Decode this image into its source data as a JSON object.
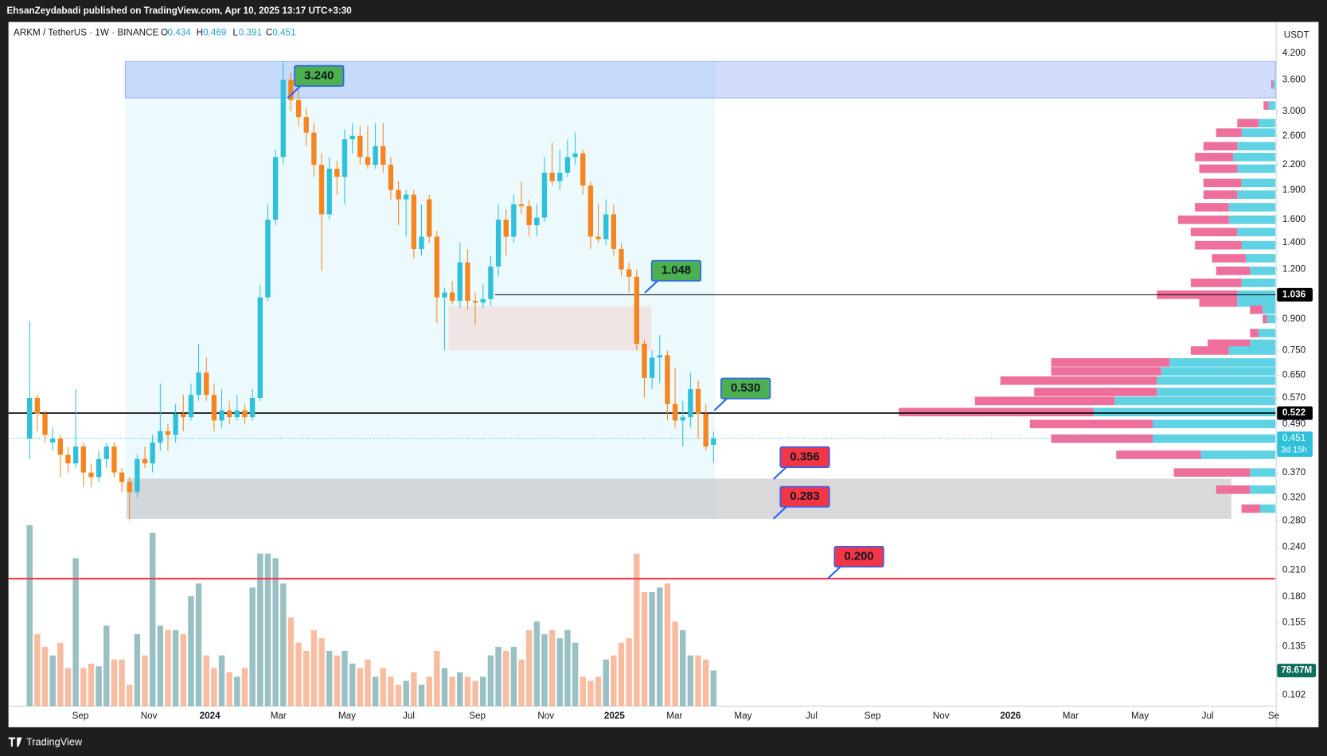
{
  "header": {
    "published": "EhsanZeydabadi published on TradingView.com, Apr 10, 2025 13:17 UTC+3:30",
    "brand": "TradingView"
  },
  "chart_data": {
    "type": "candlestick",
    "title": "ARKM / TetherUS · 1W · BINANCE",
    "ohlc_labels": [
      "O",
      "H",
      "L",
      "C"
    ],
    "axis_title": "USDT",
    "log_scale": true,
    "grid": false,
    "up_color": "#2fc1db",
    "down_color": "#f5861f",
    "ylim": [
      0.0956,
      5.03
    ],
    "yticks": [
      {
        "value": 4.2,
        "label": "4.200"
      },
      {
        "value": 3.6,
        "label": "3.600"
      },
      {
        "value": 3.0,
        "label": "3.000"
      },
      {
        "value": 2.6,
        "label": "2.600"
      },
      {
        "value": 2.2,
        "label": "2.200"
      },
      {
        "value": 1.9,
        "label": "1.900"
      },
      {
        "value": 1.6,
        "label": "1.600"
      },
      {
        "value": 1.4,
        "label": "1.400"
      },
      {
        "value": 1.2,
        "label": "1.200"
      },
      {
        "value": 0.9,
        "label": "0.900"
      },
      {
        "value": 0.75,
        "label": "0.750"
      },
      {
        "value": 0.65,
        "label": "0.650"
      },
      {
        "value": 0.57,
        "label": "0.570"
      },
      {
        "value": 0.49,
        "label": "0.490"
      },
      {
        "value": 0.37,
        "label": "0.370"
      },
      {
        "value": 0.32,
        "label": "0.320"
      },
      {
        "value": 0.28,
        "label": "0.280"
      },
      {
        "value": 0.24,
        "label": "0.240"
      },
      {
        "value": 0.21,
        "label": "0.210"
      },
      {
        "value": 0.18,
        "label": "0.180"
      },
      {
        "value": 0.155,
        "label": "0.155"
      },
      {
        "value": 0.135,
        "label": "0.135"
      },
      {
        "value": 0.102,
        "label": "0.102"
      }
    ],
    "x_labels": [
      "Sep",
      "Nov",
      "2024",
      "Mar",
      "May",
      "Jul",
      "Sep",
      "Nov",
      "2025",
      "Mar",
      "May",
      "Jul",
      "Sep",
      "Nov",
      "2026",
      "Mar",
      "May",
      "Jul",
      "Se"
    ],
    "candles": [
      [
        0.45,
        0.89,
        0.4,
        0.57
      ],
      [
        0.57,
        0.58,
        0.47,
        0.52
      ],
      [
        0.52,
        0.53,
        0.44,
        0.46
      ],
      [
        0.44,
        0.48,
        0.42,
        0.45
      ],
      [
        0.45,
        0.46,
        0.36,
        0.41
      ],
      [
        0.41,
        0.43,
        0.37,
        0.39
      ],
      [
        0.39,
        0.6,
        0.38,
        0.43
      ],
      [
        0.43,
        0.44,
        0.34,
        0.37
      ],
      [
        0.37,
        0.39,
        0.34,
        0.36
      ],
      [
        0.36,
        0.42,
        0.35,
        0.4
      ],
      [
        0.4,
        0.44,
        0.38,
        0.43
      ],
      [
        0.43,
        0.44,
        0.36,
        0.37
      ],
      [
        0.37,
        0.38,
        0.33,
        0.35
      ],
      [
        0.35,
        0.36,
        0.28,
        0.33
      ],
      [
        0.33,
        0.41,
        0.32,
        0.4
      ],
      [
        0.4,
        0.43,
        0.38,
        0.39
      ],
      [
        0.39,
        0.46,
        0.37,
        0.44
      ],
      [
        0.44,
        0.62,
        0.42,
        0.47
      ],
      [
        0.47,
        0.49,
        0.42,
        0.46
      ],
      [
        0.46,
        0.55,
        0.44,
        0.52
      ],
      [
        0.52,
        0.58,
        0.47,
        0.51
      ],
      [
        0.51,
        0.62,
        0.5,
        0.58
      ],
      [
        0.58,
        0.78,
        0.56,
        0.66
      ],
      [
        0.66,
        0.72,
        0.56,
        0.58
      ],
      [
        0.58,
        0.62,
        0.47,
        0.5
      ],
      [
        0.5,
        0.6,
        0.48,
        0.53
      ],
      [
        0.53,
        0.56,
        0.49,
        0.51
      ],
      [
        0.51,
        0.58,
        0.5,
        0.53
      ],
      [
        0.53,
        0.55,
        0.49,
        0.51
      ],
      [
        0.51,
        0.6,
        0.5,
        0.57
      ],
      [
        0.57,
        1.1,
        0.56,
        1.02
      ],
      [
        1.02,
        1.75,
        1.0,
        1.6
      ],
      [
        1.6,
        2.4,
        1.55,
        2.3
      ],
      [
        2.3,
        4.0,
        2.2,
        3.6
      ],
      [
        3.6,
        3.75,
        3.0,
        3.2
      ],
      [
        3.2,
        3.4,
        2.75,
        2.9
      ],
      [
        2.9,
        3.05,
        2.45,
        2.65
      ],
      [
        2.65,
        2.8,
        2.05,
        2.2
      ],
      [
        2.2,
        2.35,
        1.19,
        1.65
      ],
      [
        1.65,
        2.3,
        1.6,
        2.15
      ],
      [
        2.15,
        2.25,
        1.85,
        2.05
      ],
      [
        2.05,
        2.7,
        1.75,
        2.55
      ],
      [
        2.55,
        2.8,
        2.35,
        2.6
      ],
      [
        2.6,
        2.75,
        2.2,
        2.3
      ],
      [
        2.3,
        2.75,
        2.15,
        2.2
      ],
      [
        2.2,
        2.8,
        2.15,
        2.45
      ],
      [
        2.45,
        2.8,
        2.1,
        2.2
      ],
      [
        2.2,
        2.3,
        1.8,
        1.9
      ],
      [
        1.9,
        2.0,
        1.55,
        1.8
      ],
      [
        1.8,
        1.9,
        1.45,
        1.85
      ],
      [
        1.85,
        1.9,
        1.28,
        1.35
      ],
      [
        1.35,
        1.75,
        1.3,
        1.45
      ],
      [
        1.8,
        1.85,
        1.4,
        1.45
      ],
      [
        1.45,
        1.5,
        0.88,
        1.02
      ],
      [
        1.02,
        1.08,
        0.75,
        1.05
      ],
      [
        1.05,
        1.12,
        0.98,
        1.0
      ],
      [
        1.0,
        1.4,
        0.96,
        1.25
      ],
      [
        1.25,
        1.35,
        0.95,
        1.0
      ],
      [
        1.0,
        1.05,
        0.87,
        0.99
      ],
      [
        0.99,
        1.1,
        0.96,
        1.01
      ],
      [
        1.01,
        1.3,
        0.97,
        1.22
      ],
      [
        1.22,
        1.75,
        1.15,
        1.6
      ],
      [
        1.6,
        1.7,
        1.3,
        1.45
      ],
      [
        1.45,
        1.85,
        1.4,
        1.75
      ],
      [
        1.75,
        2.0,
        1.65,
        1.73
      ],
      [
        1.73,
        1.8,
        1.45,
        1.55
      ],
      [
        1.55,
        1.75,
        1.45,
        1.62
      ],
      [
        1.62,
        2.3,
        1.58,
        2.1
      ],
      [
        2.1,
        2.5,
        1.95,
        2.0
      ],
      [
        2.0,
        2.4,
        1.9,
        2.1
      ],
      [
        2.1,
        2.55,
        2.05,
        2.3
      ],
      [
        2.3,
        2.65,
        2.2,
        2.35
      ],
      [
        2.35,
        2.4,
        1.85,
        1.95
      ],
      [
        1.95,
        2.0,
        1.35,
        1.45
      ],
      [
        1.45,
        1.75,
        1.4,
        1.43
      ],
      [
        1.43,
        1.8,
        1.38,
        1.65
      ],
      [
        1.65,
        1.75,
        1.3,
        1.35
      ],
      [
        1.35,
        1.4,
        1.15,
        1.2
      ],
      [
        1.2,
        1.25,
        1.05,
        1.15
      ],
      [
        1.15,
        1.2,
        0.75,
        0.78
      ],
      [
        0.78,
        0.8,
        0.57,
        0.64
      ],
      [
        0.64,
        0.75,
        0.6,
        0.72
      ],
      [
        0.72,
        0.82,
        0.62,
        0.73
      ],
      [
        0.73,
        0.75,
        0.5,
        0.55
      ],
      [
        0.55,
        0.68,
        0.48,
        0.5
      ],
      [
        0.5,
        0.56,
        0.43,
        0.51
      ],
      [
        0.51,
        0.66,
        0.48,
        0.6
      ],
      [
        0.6,
        0.63,
        0.45,
        0.52
      ],
      [
        0.52,
        0.55,
        0.42,
        0.43
      ],
      [
        0.434,
        0.469,
        0.391,
        0.451
      ]
    ],
    "volume": [
      400,
      159,
      131,
      112,
      140,
      84,
      327,
      84,
      94,
      88,
      178,
      103,
      103,
      47,
      159,
      112,
      383,
      178,
      168,
      168,
      159,
      243,
      271,
      112,
      84,
      112,
      75,
      65,
      84,
      262,
      337,
      337,
      327,
      271,
      196,
      140,
      122,
      168,
      150,
      122,
      112,
      122,
      94,
      84,
      103,
      65,
      84,
      65,
      47,
      56,
      75,
      47,
      65,
      122,
      84,
      65,
      75,
      65,
      56,
      65,
      112,
      131,
      122,
      131,
      103,
      168,
      187,
      159,
      168,
      150,
      168,
      140,
      65,
      56,
      65,
      103,
      112,
      140,
      150,
      337,
      252,
      252,
      262,
      271,
      187,
      168,
      112,
      112,
      103,
      78.67
    ],
    "volume_value_labels": {
      "89": "78.67M"
    },
    "profile": [
      {
        "price": 3.5,
        "up": 3,
        "down": 2
      },
      {
        "price": 3.1,
        "up": 8,
        "down": 6
      },
      {
        "price": 2.8,
        "up": 20,
        "down": 25
      },
      {
        "price": 2.65,
        "up": 40,
        "down": 30
      },
      {
        "price": 2.45,
        "up": 45,
        "down": 40
      },
      {
        "price": 2.3,
        "up": 50,
        "down": 45
      },
      {
        "price": 2.15,
        "up": 45,
        "down": 45
      },
      {
        "price": 1.98,
        "up": 40,
        "down": 45
      },
      {
        "price": 1.85,
        "up": 45,
        "down": 40
      },
      {
        "price": 1.72,
        "up": 55,
        "down": 40
      },
      {
        "price": 1.6,
        "up": 55,
        "down": 60
      },
      {
        "price": 1.49,
        "up": 45,
        "down": 55
      },
      {
        "price": 1.38,
        "up": 40,
        "down": 55
      },
      {
        "price": 1.28,
        "up": 35,
        "down": 40
      },
      {
        "price": 1.19,
        "up": 30,
        "down": 40
      },
      {
        "price": 1.11,
        "up": 40,
        "down": 60
      },
      {
        "price": 1.036,
        "up": 45,
        "down": 95
      },
      {
        "price": 0.99,
        "up": 45,
        "down": 45
      },
      {
        "price": 0.95,
        "up": 15,
        "down": 15
      },
      {
        "price": 0.9,
        "up": 10,
        "down": 5
      },
      {
        "price": 0.83,
        "up": 20,
        "down": 10
      },
      {
        "price": 0.78,
        "up": 30,
        "down": 50
      },
      {
        "price": 0.75,
        "up": 55,
        "down": 45
      },
      {
        "price": 0.7,
        "up": 125,
        "down": 140
      },
      {
        "price": 0.665,
        "up": 135,
        "down": 130
      },
      {
        "price": 0.63,
        "up": 140,
        "down": 185
      },
      {
        "price": 0.59,
        "up": 140,
        "down": 145
      },
      {
        "price": 0.56,
        "up": 190,
        "down": 165
      },
      {
        "price": 0.525,
        "up": 215,
        "down": 230
      },
      {
        "price": 0.49,
        "up": 145,
        "down": 145
      },
      {
        "price": 0.45,
        "up": 145,
        "down": 120
      },
      {
        "price": 0.41,
        "up": 88,
        "down": 100
      },
      {
        "price": 0.37,
        "up": 30,
        "down": 90
      },
      {
        "price": 0.335,
        "up": 30,
        "down": 40
      },
      {
        "price": 0.3,
        "up": 18,
        "down": 22
      }
    ],
    "zones": [
      {
        "low": 0.283,
        "high": 4.0,
        "color": "rgba(215,245,250,0.45)"
      },
      {
        "low": 3.24,
        "high": 4.0,
        "color": "rgba(140,170,245,0.4)"
      },
      {
        "low": 0.75,
        "high": 0.97,
        "color": "rgba(245,205,200,0.45)"
      },
      {
        "low": 0.283,
        "high": 0.357,
        "color": "rgba(185,185,190,0.55)"
      }
    ],
    "lines": [
      {
        "value": 1.036,
        "color": "#000000"
      },
      {
        "value": 0.522,
        "color": "#000000"
      },
      {
        "value": 0.2,
        "color": "#f23645"
      },
      {
        "value": 0.451,
        "color": "#2fc1db"
      }
    ],
    "annotations": [
      {
        "value": 3.24,
        "label": "3.240",
        "color": "#4caf50"
      },
      {
        "value": 1.048,
        "label": "1.048",
        "color": "#4caf50"
      },
      {
        "value": 0.53,
        "label": "0.530",
        "color": "#4caf50"
      },
      {
        "value": 0.356,
        "label": "0.356",
        "color": "#f23645"
      },
      {
        "value": 0.283,
        "label": "0.283",
        "color": "#f23645"
      },
      {
        "value": 0.2,
        "label": "0.200",
        "color": "#f23645"
      }
    ],
    "price_labels": [
      {
        "value": 1.036,
        "label": "1.036",
        "color": "#000000"
      },
      {
        "value": 0.522,
        "label": "0.522",
        "color": "#000000"
      },
      {
        "value": 0.451,
        "label": "0.451",
        "color": "#2fc1db"
      }
    ],
    "countdown": "3d 15h"
  }
}
